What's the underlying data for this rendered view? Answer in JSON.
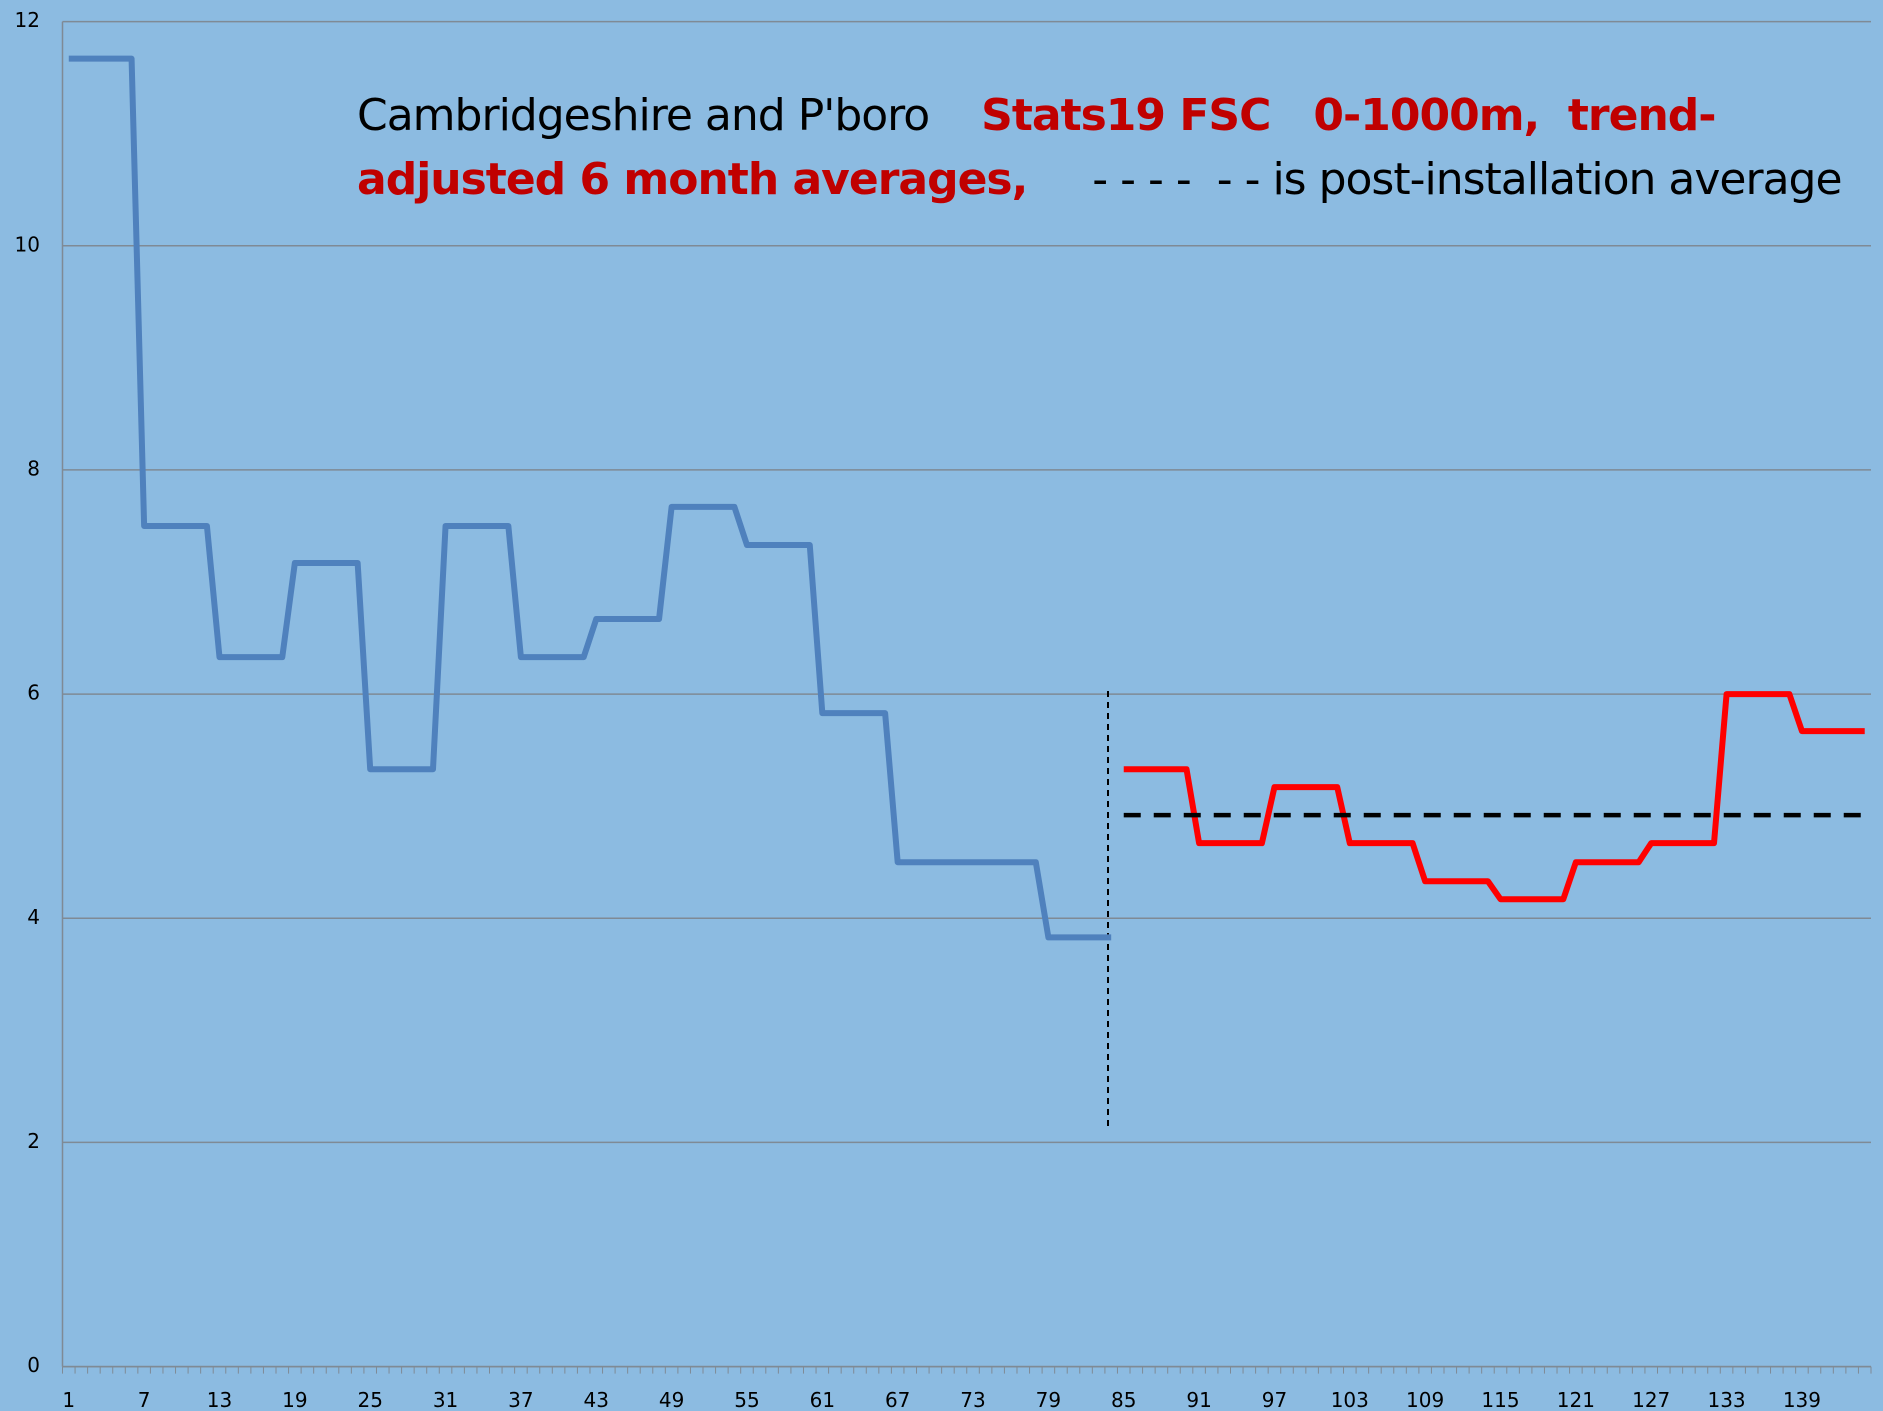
{
  "chart_data": {
    "type": "line",
    "title": [
      [
        {
          "text": "Cambridgeshire and P'boro    ",
          "color": "#000000",
          "bold": false
        },
        {
          "text": "Stats19 FSC   0-1000m,  trend-",
          "color": "#c00000",
          "bold": true
        }
      ],
      [
        {
          "text": "adjusted 6 month averages,",
          "color": "#c00000",
          "bold": true
        },
        {
          "text": "     - - - -  - - is post-installation average",
          "color": "#000000",
          "bold": false
        }
      ]
    ],
    "categories": [
      "1",
      null,
      null,
      null,
      null,
      null,
      "7",
      null,
      null,
      null,
      null,
      null,
      "13",
      null,
      null,
      null,
      null,
      null,
      "19",
      null,
      null,
      null,
      null,
      null,
      "25",
      null,
      null,
      null,
      null,
      null,
      "31",
      null,
      null,
      null,
      null,
      null,
      "37",
      null,
      null,
      null,
      null,
      null,
      "43",
      null,
      null,
      null,
      null,
      null,
      "49",
      null,
      null,
      null,
      null,
      null,
      "55",
      null,
      null,
      null,
      null,
      null,
      "61",
      null,
      null,
      null,
      null,
      null,
      "67",
      null,
      null,
      null,
      null,
      null,
      "73",
      null,
      null,
      null,
      null,
      null,
      "79",
      null,
      null,
      null,
      null,
      null,
      "85",
      null,
      null,
      null,
      null,
      null,
      "91",
      null,
      null,
      null,
      null,
      null,
      "97",
      null,
      null,
      null,
      null,
      null,
      "103",
      null,
      null,
      null,
      null,
      null,
      "109",
      null,
      null,
      null,
      null,
      null,
      "115",
      null,
      null,
      null,
      null,
      null,
      "121",
      null,
      null,
      null,
      null,
      null,
      "127",
      null,
      null,
      null,
      null,
      null,
      "133",
      null,
      null,
      null,
      null,
      null,
      "139",
      null,
      null,
      null,
      null,
      null
    ],
    "series": [
      {
        "color": "#4f81bd",
        "dash": false,
        "values": [
          11.67,
          11.67,
          11.67,
          11.67,
          11.67,
          11.67,
          7.5,
          7.5,
          7.5,
          7.5,
          7.5,
          7.5,
          6.33,
          6.33,
          6.33,
          6.33,
          6.33,
          6.33,
          7.17,
          7.17,
          7.17,
          7.17,
          7.17,
          7.17,
          5.33,
          5.33,
          5.33,
          5.33,
          5.33,
          5.33,
          7.5,
          7.5,
          7.5,
          7.5,
          7.5,
          7.5,
          6.33,
          6.33,
          6.33,
          6.33,
          6.33,
          6.33,
          6.67,
          6.67,
          6.67,
          6.67,
          6.67,
          6.67,
          7.67,
          7.67,
          7.67,
          7.67,
          7.67,
          7.67,
          7.33,
          7.33,
          7.33,
          7.33,
          7.33,
          7.33,
          5.83,
          5.83,
          5.83,
          5.83,
          5.83,
          5.83,
          4.5,
          4.5,
          4.5,
          4.5,
          4.5,
          4.5,
          4.5,
          4.5,
          4.5,
          4.5,
          4.5,
          4.5,
          3.83,
          3.83,
          3.83,
          3.83,
          3.83,
          3.83,
          null,
          null,
          null,
          null,
          null,
          null,
          null,
          null,
          null,
          null,
          null,
          null,
          null,
          null,
          null,
          null,
          null,
          null,
          null,
          null,
          null,
          null,
          null,
          null,
          null,
          null,
          null,
          null,
          null,
          null,
          null,
          null,
          null,
          null,
          null,
          null,
          null,
          null,
          null,
          null,
          null,
          null,
          null,
          null,
          null,
          null,
          null,
          null,
          null,
          null,
          null,
          null,
          null,
          null,
          null,
          null,
          null,
          null,
          null,
          null
        ]
      },
      {
        "color": "#ff0000",
        "dash": false,
        "values": [
          null,
          null,
          null,
          null,
          null,
          null,
          null,
          null,
          null,
          null,
          null,
          null,
          null,
          null,
          null,
          null,
          null,
          null,
          null,
          null,
          null,
          null,
          null,
          null,
          null,
          null,
          null,
          null,
          null,
          null,
          null,
          null,
          null,
          null,
          null,
          null,
          null,
          null,
          null,
          null,
          null,
          null,
          null,
          null,
          null,
          null,
          null,
          null,
          null,
          null,
          null,
          null,
          null,
          null,
          null,
          null,
          null,
          null,
          null,
          null,
          null,
          null,
          null,
          null,
          null,
          null,
          null,
          null,
          null,
          null,
          null,
          null,
          null,
          null,
          null,
          null,
          null,
          null,
          null,
          null,
          null,
          null,
          null,
          null,
          5.33,
          5.33,
          5.33,
          5.33,
          5.33,
          5.33,
          4.67,
          4.67,
          4.67,
          4.67,
          4.67,
          4.67,
          5.17,
          5.17,
          5.17,
          5.17,
          5.17,
          5.17,
          4.67,
          4.67,
          4.67,
          4.67,
          4.67,
          4.67,
          4.33,
          4.33,
          4.33,
          4.33,
          4.33,
          4.33,
          4.17,
          4.17,
          4.17,
          4.17,
          4.17,
          4.17,
          4.5,
          4.5,
          4.5,
          4.5,
          4.5,
          4.5,
          4.67,
          4.67,
          4.67,
          4.67,
          4.67,
          4.67,
          6.0,
          6.0,
          6.0,
          6.0,
          6.0,
          6.0,
          5.67,
          5.67,
          5.67,
          5.67,
          5.67,
          5.67
        ]
      },
      {
        "color": "#000000",
        "dash": true,
        "values": [
          null,
          null,
          null,
          null,
          null,
          null,
          null,
          null,
          null,
          null,
          null,
          null,
          null,
          null,
          null,
          null,
          null,
          null,
          null,
          null,
          null,
          null,
          null,
          null,
          null,
          null,
          null,
          null,
          null,
          null,
          null,
          null,
          null,
          null,
          null,
          null,
          null,
          null,
          null,
          null,
          null,
          null,
          null,
          null,
          null,
          null,
          null,
          null,
          null,
          null,
          null,
          null,
          null,
          null,
          null,
          null,
          null,
          null,
          null,
          null,
          null,
          null,
          null,
          null,
          null,
          null,
          null,
          null,
          null,
          null,
          null,
          null,
          null,
          null,
          null,
          null,
          null,
          null,
          null,
          null,
          null,
          null,
          null,
          null,
          4.92,
          4.92,
          4.92,
          4.92,
          4.92,
          4.92,
          4.92,
          4.92,
          4.92,
          4.92,
          4.92,
          4.92,
          4.92,
          4.92,
          4.92,
          4.92,
          4.92,
          4.92,
          4.92,
          4.92,
          4.92,
          4.92,
          4.92,
          4.92,
          4.92,
          4.92,
          4.92,
          4.92,
          4.92,
          4.92,
          4.92,
          4.92,
          4.92,
          4.92,
          4.92,
          4.92,
          4.92,
          4.92,
          4.92,
          4.92,
          4.92,
          4.92,
          4.92,
          4.92,
          4.92,
          4.92,
          4.92,
          4.92,
          4.92,
          4.92,
          4.92,
          4.92,
          4.92,
          4.92,
          4.92,
          4.92,
          4.92,
          4.92,
          4.92,
          4.92
        ]
      }
    ],
    "ylim": [
      0,
      12
    ],
    "yticks": [
      0,
      2,
      4,
      6,
      8,
      10,
      12
    ],
    "grid": true
  }
}
